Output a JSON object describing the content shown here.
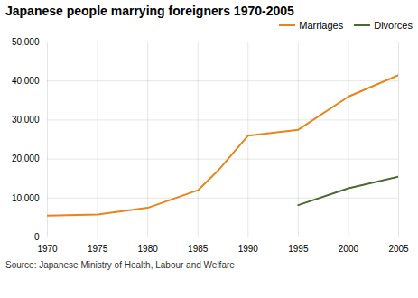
{
  "chart_data": {
    "type": "line",
    "title": "Japanese people marrying foreigners 1970-2005",
    "caption": "Source: Japanese Ministry of Health, Labour and Welfare",
    "x": [
      1970,
      1975,
      1980,
      1985,
      1987,
      1990,
      1995,
      2000,
      2005
    ],
    "series": [
      {
        "name": "Marriages",
        "color": "#E8851A",
        "values": [
          5500,
          5800,
          7500,
          12000,
          17000,
          26000,
          27500,
          36000,
          41500
        ]
      },
      {
        "name": "Divorces",
        "color": "#4a6a30",
        "values": [
          null,
          null,
          null,
          null,
          null,
          null,
          8200,
          12500,
          15500
        ]
      }
    ],
    "xlim": [
      1970,
      2005
    ],
    "xticks": [
      1970,
      1975,
      1980,
      1985,
      1990,
      1995,
      2000,
      2005
    ],
    "ylim": [
      0,
      50000
    ],
    "yticks": [
      0,
      {
        "value": 10000,
        "label": "10,000"
      },
      {
        "value": 20000,
        "label": "20,000"
      },
      {
        "value": 30000,
        "label": "30,000"
      },
      {
        "value": 40000,
        "label": "40,000"
      },
      {
        "value": 50000,
        "label": "50,000"
      }
    ],
    "grid": true,
    "legend": "top-right"
  }
}
